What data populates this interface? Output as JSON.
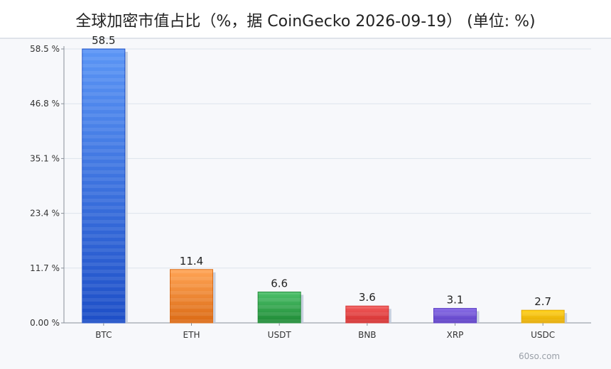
{
  "title": "全球加密市值占比（%，据 CoinGecko 2026-09-19） (单位: %)",
  "watermark": "60so.com",
  "colors": {
    "grid": "#dde3ec",
    "axis": "#8a9099",
    "shadow": "#bcc6d8"
  },
  "chart_data": {
    "type": "bar",
    "title": "全球加密市值占比（%，据 CoinGecko 2026-09-19） (单位: %)",
    "xlabel": "",
    "ylabel": "",
    "categories": [
      "BTC",
      "ETH",
      "USDT",
      "BNB",
      "XRP",
      "USDC"
    ],
    "values": [
      58.5,
      11.4,
      6.6,
      3.6,
      3.1,
      2.7
    ],
    "value_labels": [
      "58.5",
      "11.4",
      "6.6",
      "3.6",
      "3.1",
      "2.7"
    ],
    "bar_colors": [
      [
        "#5b95f5",
        "#1e4fc7"
      ],
      [
        "#ffa455",
        "#db6a14"
      ],
      [
        "#4dc06a",
        "#1e8a35"
      ],
      [
        "#f25a5a",
        "#d32f2f"
      ],
      [
        "#8a6ee6",
        "#5a3cc4"
      ],
      [
        "#ffd21e",
        "#e3a800"
      ]
    ],
    "yticks": [
      "0.00 %",
      "11.7 %",
      "23.4 %",
      "35.1 %",
      "46.8 %",
      "58.5 %"
    ],
    "ytick_values": [
      0,
      11.7,
      23.4,
      35.1,
      46.8,
      58.5
    ],
    "ylim": [
      0,
      58.5
    ],
    "grid": true,
    "legend": "none"
  }
}
